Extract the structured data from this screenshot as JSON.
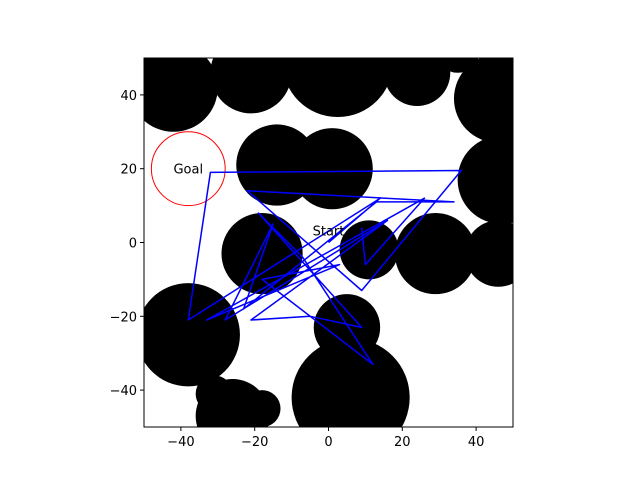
{
  "chart_data": {
    "type": "scatter",
    "title": "",
    "xlabel": "",
    "ylabel": "",
    "xlim": [
      -50,
      50
    ],
    "ylim": [
      -50,
      50
    ],
    "xticks": [
      -40,
      -20,
      0,
      20,
      40
    ],
    "yticks": [
      -40,
      -20,
      0,
      20,
      40
    ],
    "xtick_labels": [
      "−40",
      "−20",
      "0",
      "20",
      "40"
    ],
    "ytick_labels": [
      "−40",
      "−20",
      "0",
      "20",
      "40"
    ],
    "grid": false,
    "legend": "none",
    "obstacle_color": "#000000",
    "path_color": "#0000ff",
    "goal_color": "#ff0000",
    "obstacles": [
      {
        "x": -42,
        "y": 42,
        "r": 12
      },
      {
        "x": -21,
        "y": 46,
        "r": 11
      },
      {
        "x": 2.5,
        "y": 49,
        "r": 15
      },
      {
        "x": 24,
        "y": 46,
        "r": 9
      },
      {
        "x": 35,
        "y": 52,
        "r": 6
      },
      {
        "x": 46,
        "y": 39,
        "r": 12
      },
      {
        "x": -14,
        "y": 21,
        "r": 11
      },
      {
        "x": 1,
        "y": 20,
        "r": 11
      },
      {
        "x": 47,
        "y": 17,
        "r": 12
      },
      {
        "x": -18,
        "y": -3,
        "r": 11
      },
      {
        "x": 11,
        "y": -2,
        "r": 8
      },
      {
        "x": 29,
        "y": -3,
        "r": 11
      },
      {
        "x": 46,
        "y": -3,
        "r": 9
      },
      {
        "x": -38,
        "y": -25,
        "r": 14
      },
      {
        "x": 5,
        "y": -23,
        "r": 9
      },
      {
        "x": -31,
        "y": -41,
        "r": 5
      },
      {
        "x": -26,
        "y": -47,
        "r": 10
      },
      {
        "x": -18,
        "y": -45,
        "r": 5
      },
      {
        "x": 6,
        "y": -42,
        "r": 16
      }
    ],
    "goal": {
      "label": "Goal",
      "x": -38,
      "y": 20,
      "r": 10
    },
    "start": {
      "label": "Start",
      "x": 0,
      "y": 0
    },
    "path": [
      [
        0,
        0
      ],
      [
        14,
        12
      ],
      [
        -38,
        -21
      ],
      [
        -32,
        19
      ],
      [
        36,
        19.5
      ],
      [
        9,
        -13
      ],
      [
        -22,
        14
      ],
      [
        34,
        11
      ],
      [
        13,
        11
      ],
      [
        -23,
        -18
      ],
      [
        -15,
        5
      ],
      [
        -28,
        -21
      ],
      [
        16,
        6
      ],
      [
        -21,
        -21
      ],
      [
        -5,
        -20
      ],
      [
        9,
        -23
      ],
      [
        -19,
        8
      ],
      [
        -7,
        -4
      ],
      [
        12,
        -33
      ],
      [
        -18,
        -10
      ],
      [
        3,
        -6
      ],
      [
        -33,
        -21
      ],
      [
        26,
        12
      ],
      [
        10,
        -6
      ],
      [
        9,
        4
      ]
    ]
  }
}
